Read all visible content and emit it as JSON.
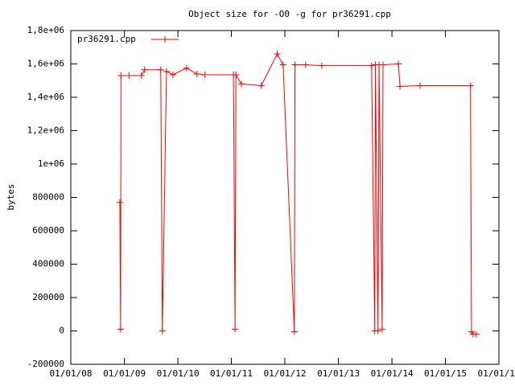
{
  "chart_data": {
    "type": "line",
    "title": "Object size for -O0 -g for pr36291.cpp",
    "y_label": "bytes",
    "legend_position": "top-left",
    "xlim": [
      "2008-01-01",
      "2016-01-01"
    ],
    "xticks": [
      {
        "value": "2008-01-01",
        "label": "01/01/08"
      },
      {
        "value": "2009-01-01",
        "label": "01/01/09"
      },
      {
        "value": "2010-01-01",
        "label": "01/01/10"
      },
      {
        "value": "2011-01-01",
        "label": "01/01/11"
      },
      {
        "value": "2012-01-01",
        "label": "01/01/12"
      },
      {
        "value": "2013-01-01",
        "label": "01/01/13"
      },
      {
        "value": "2014-01-01",
        "label": "01/01/14"
      },
      {
        "value": "2015-01-01",
        "label": "01/01/15"
      },
      {
        "value": "2016-01-01",
        "label": "01/01/16"
      }
    ],
    "ylim": [
      -200000,
      1800000
    ],
    "yticks": [
      -200000,
      0,
      200000,
      400000,
      600000,
      800000,
      {
        "value": 1000000,
        "label": "1e+06"
      },
      {
        "value": 1200000,
        "label": "1,2e+06"
      },
      {
        "value": 1400000,
        "label": "1,4e+06"
      },
      {
        "value": 1600000,
        "label": "1,6e+06"
      },
      {
        "value": 1800000,
        "label": "1,8e+06"
      }
    ],
    "series": [
      {
        "name": "pr36291.cpp",
        "color": "#ff0000",
        "x": [
          "2008-12-01",
          "2008-12-06",
          "2008-12-08",
          "2009-02-01",
          "2009-04-27",
          "2009-05-19",
          "2009-09-06",
          "2009-09-17",
          "2009-10-15",
          "2009-11-28",
          "2010-03-01",
          "2010-05-11",
          "2010-07-05",
          "2011-01-15",
          "2011-01-26",
          "2011-02-01",
          "2011-03-10",
          "2011-07-24",
          "2011-11-10",
          "2011-12-20",
          "2012-03-06",
          "2012-03-10",
          "2012-05-22",
          "2012-09-09",
          "2013-08-15",
          "2013-09-06",
          "2013-09-10",
          "2013-09-28",
          "2013-10-05",
          "2013-10-26",
          "2013-11-01",
          "2014-02-14",
          "2014-02-25",
          "2014-07-12",
          "2015-06-21",
          "2015-06-28",
          "2015-07-09",
          "2015-07-31"
        ],
        "values": [
          770000,
          10000,
          1530000,
          1530000,
          1530000,
          1565000,
          1565000,
          0,
          1555000,
          1535000,
          1575000,
          1540000,
          1535000,
          1535000,
          10000,
          1535000,
          1480000,
          1470000,
          1660000,
          1595000,
          -5000,
          1595000,
          1595000,
          1590000,
          1590000,
          0,
          1595000,
          0,
          1595000,
          10000,
          1595000,
          1600000,
          1465000,
          1470000,
          1470000,
          -5000,
          -20000,
          -20000
        ]
      }
    ]
  }
}
